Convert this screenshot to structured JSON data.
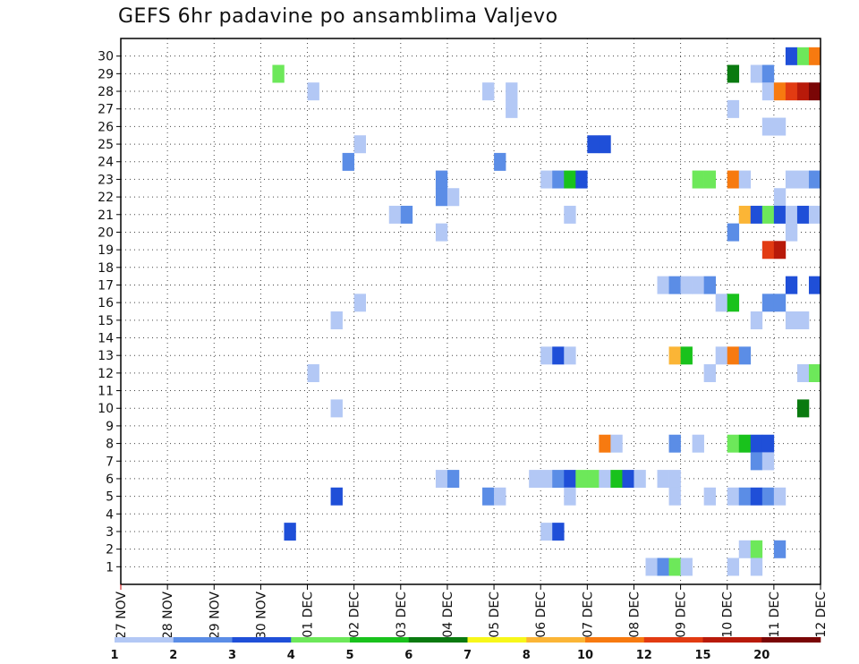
{
  "chart_data": {
    "type": "heatmap",
    "title": "GEFS 6hr padavine po ansamblima Valjevo",
    "xlabel": "",
    "ylabel": "",
    "x_ticks": [
      "27 NOV",
      "28 NOV",
      "29 NOV",
      "30 NOV",
      "01 DEC",
      "02 DEC",
      "03 DEC",
      "04 DEC",
      "05 DEC",
      "06 DEC",
      "07 DEC",
      "08 DEC",
      "09 DEC",
      "10 DEC",
      "11 DEC",
      "12 DEC"
    ],
    "y_ticks": [
      "1",
      "2",
      "3",
      "4",
      "5",
      "6",
      "7",
      "8",
      "9",
      "10",
      "11",
      "12",
      "13",
      "14",
      "15",
      "16",
      "17",
      "18",
      "19",
      "20",
      "21",
      "22",
      "23",
      "24",
      "25",
      "26",
      "27",
      "28",
      "29",
      "30"
    ],
    "grid": true,
    "x_steps_per_day": 4,
    "legend": {
      "position": "bottom",
      "levels": [
        "1",
        "2",
        "3",
        "4",
        "5",
        "6",
        "7",
        "8",
        "10",
        "12",
        "15",
        "20"
      ],
      "colors": [
        "#b3c8f5",
        "#5b8de6",
        "#1f4fd8",
        "#6de85a",
        "#19c21c",
        "#0a7a10",
        "#f7f71a",
        "#fbb536",
        "#f77a10",
        "#e23b12",
        "#b81a0a",
        "#7a0606"
      ]
    },
    "cells": [
      {
        "member": 30,
        "step": 57,
        "bin": 3
      },
      {
        "member": 30,
        "step": 58,
        "bin": 4
      },
      {
        "member": 30,
        "step": 59,
        "bin": 10
      },
      {
        "member": 29,
        "step": 13,
        "bin": 4
      },
      {
        "member": 29,
        "step": 52,
        "bin": 6
      },
      {
        "member": 29,
        "step": 54,
        "bin": 1
      },
      {
        "member": 29,
        "step": 55,
        "bin": 2
      },
      {
        "member": 28,
        "step": 16,
        "bin": 1
      },
      {
        "member": 28,
        "step": 31,
        "bin": 1
      },
      {
        "member": 28,
        "step": 33,
        "bin": 1
      },
      {
        "member": 28,
        "step": 55,
        "bin": 1
      },
      {
        "member": 28,
        "step": 56,
        "bin": 10
      },
      {
        "member": 28,
        "step": 57,
        "bin": 12
      },
      {
        "member": 28,
        "step": 58,
        "bin": 15
      },
      {
        "member": 28,
        "step": 59,
        "bin": 20
      },
      {
        "member": 27,
        "step": 33,
        "bin": 1
      },
      {
        "member": 27,
        "step": 52,
        "bin": 1
      },
      {
        "member": 26,
        "step": 55,
        "bin": 1
      },
      {
        "member": 26,
        "step": 56,
        "bin": 1
      },
      {
        "member": 25,
        "step": 20,
        "bin": 1
      },
      {
        "member": 25,
        "step": 40,
        "bin": 3
      },
      {
        "member": 25,
        "step": 41,
        "bin": 3
      },
      {
        "member": 24,
        "step": 19,
        "bin": 2
      },
      {
        "member": 24,
        "step": 32,
        "bin": 2
      },
      {
        "member": 23,
        "step": 27,
        "bin": 2
      },
      {
        "member": 23,
        "step": 36,
        "bin": 1
      },
      {
        "member": 23,
        "step": 37,
        "bin": 2
      },
      {
        "member": 23,
        "step": 38,
        "bin": 5
      },
      {
        "member": 23,
        "step": 39,
        "bin": 3
      },
      {
        "member": 23,
        "step": 49,
        "bin": 4
      },
      {
        "member": 23,
        "step": 50,
        "bin": 4
      },
      {
        "member": 23,
        "step": 52,
        "bin": 10
      },
      {
        "member": 23,
        "step": 53,
        "bin": 1
      },
      {
        "member": 23,
        "step": 57,
        "bin": 1
      },
      {
        "member": 23,
        "step": 58,
        "bin": 1
      },
      {
        "member": 23,
        "step": 59,
        "bin": 2
      },
      {
        "member": 22,
        "step": 27,
        "bin": 2
      },
      {
        "member": 22,
        "step": 28,
        "bin": 1
      },
      {
        "member": 22,
        "step": 56,
        "bin": 1
      },
      {
        "member": 21,
        "step": 23,
        "bin": 1
      },
      {
        "member": 21,
        "step": 24,
        "bin": 2
      },
      {
        "member": 21,
        "step": 38,
        "bin": 1
      },
      {
        "member": 21,
        "step": 53,
        "bin": 8
      },
      {
        "member": 21,
        "step": 54,
        "bin": 3
      },
      {
        "member": 21,
        "step": 55,
        "bin": 4
      },
      {
        "member": 21,
        "step": 56,
        "bin": 3
      },
      {
        "member": 21,
        "step": 57,
        "bin": 1
      },
      {
        "member": 21,
        "step": 58,
        "bin": 3
      },
      {
        "member": 21,
        "step": 59,
        "bin": 1
      },
      {
        "member": 20,
        "step": 27,
        "bin": 1
      },
      {
        "member": 20,
        "step": 52,
        "bin": 2
      },
      {
        "member": 20,
        "step": 57,
        "bin": 1
      },
      {
        "member": 19,
        "step": 55,
        "bin": 12
      },
      {
        "member": 19,
        "step": 56,
        "bin": 15
      },
      {
        "member": 17,
        "step": 46,
        "bin": 1
      },
      {
        "member": 17,
        "step": 47,
        "bin": 2
      },
      {
        "member": 17,
        "step": 48,
        "bin": 1
      },
      {
        "member": 17,
        "step": 49,
        "bin": 1
      },
      {
        "member": 17,
        "step": 50,
        "bin": 2
      },
      {
        "member": 17,
        "step": 57,
        "bin": 3
      },
      {
        "member": 17,
        "step": 59,
        "bin": 3
      },
      {
        "member": 16,
        "step": 20,
        "bin": 1
      },
      {
        "member": 16,
        "step": 51,
        "bin": 1
      },
      {
        "member": 16,
        "step": 52,
        "bin": 5
      },
      {
        "member": 16,
        "step": 55,
        "bin": 2
      },
      {
        "member": 16,
        "step": 56,
        "bin": 2
      },
      {
        "member": 15,
        "step": 18,
        "bin": 1
      },
      {
        "member": 15,
        "step": 54,
        "bin": 1
      },
      {
        "member": 15,
        "step": 57,
        "bin": 1
      },
      {
        "member": 15,
        "step": 58,
        "bin": 1
      },
      {
        "member": 13,
        "step": 36,
        "bin": 1
      },
      {
        "member": 13,
        "step": 37,
        "bin": 3
      },
      {
        "member": 13,
        "step": 38,
        "bin": 1
      },
      {
        "member": 13,
        "step": 47,
        "bin": 8
      },
      {
        "member": 13,
        "step": 48,
        "bin": 5
      },
      {
        "member": 13,
        "step": 51,
        "bin": 1
      },
      {
        "member": 13,
        "step": 52,
        "bin": 10
      },
      {
        "member": 13,
        "step": 53,
        "bin": 2
      },
      {
        "member": 12,
        "step": 16,
        "bin": 1
      },
      {
        "member": 12,
        "step": 50,
        "bin": 1
      },
      {
        "member": 12,
        "step": 58,
        "bin": 1
      },
      {
        "member": 12,
        "step": 59,
        "bin": 4
      },
      {
        "member": 10,
        "step": 18,
        "bin": 1
      },
      {
        "member": 10,
        "step": 58,
        "bin": 6
      },
      {
        "member": 8,
        "step": 41,
        "bin": 10
      },
      {
        "member": 8,
        "step": 42,
        "bin": 1
      },
      {
        "member": 8,
        "step": 47,
        "bin": 2
      },
      {
        "member": 8,
        "step": 49,
        "bin": 1
      },
      {
        "member": 8,
        "step": 52,
        "bin": 4
      },
      {
        "member": 8,
        "step": 53,
        "bin": 5
      },
      {
        "member": 8,
        "step": 54,
        "bin": 3
      },
      {
        "member": 8,
        "step": 55,
        "bin": 3
      },
      {
        "member": 7,
        "step": 54,
        "bin": 2
      },
      {
        "member": 7,
        "step": 55,
        "bin": 1
      },
      {
        "member": 6,
        "step": 27,
        "bin": 1
      },
      {
        "member": 6,
        "step": 28,
        "bin": 2
      },
      {
        "member": 6,
        "step": 35,
        "bin": 1
      },
      {
        "member": 6,
        "step": 36,
        "bin": 1
      },
      {
        "member": 6,
        "step": 37,
        "bin": 2
      },
      {
        "member": 6,
        "step": 38,
        "bin": 3
      },
      {
        "member": 6,
        "step": 39,
        "bin": 4
      },
      {
        "member": 6,
        "step": 40,
        "bin": 4
      },
      {
        "member": 6,
        "step": 41,
        "bin": 1
      },
      {
        "member": 6,
        "step": 42,
        "bin": 5
      },
      {
        "member": 6,
        "step": 43,
        "bin": 3
      },
      {
        "member": 6,
        "step": 44,
        "bin": 1
      },
      {
        "member": 6,
        "step": 46,
        "bin": 1
      },
      {
        "member": 6,
        "step": 47,
        "bin": 1
      },
      {
        "member": 5,
        "step": 18,
        "bin": 3
      },
      {
        "member": 5,
        "step": 31,
        "bin": 2
      },
      {
        "member": 5,
        "step": 32,
        "bin": 1
      },
      {
        "member": 5,
        "step": 38,
        "bin": 1
      },
      {
        "member": 5,
        "step": 47,
        "bin": 1
      },
      {
        "member": 5,
        "step": 50,
        "bin": 1
      },
      {
        "member": 5,
        "step": 52,
        "bin": 1
      },
      {
        "member": 5,
        "step": 53,
        "bin": 2
      },
      {
        "member": 5,
        "step": 54,
        "bin": 3
      },
      {
        "member": 5,
        "step": 55,
        "bin": 2
      },
      {
        "member": 5,
        "step": 56,
        "bin": 1
      },
      {
        "member": 3,
        "step": 14,
        "bin": 3
      },
      {
        "member": 3,
        "step": 36,
        "bin": 1
      },
      {
        "member": 3,
        "step": 37,
        "bin": 3
      },
      {
        "member": 2,
        "step": 53,
        "bin": 1
      },
      {
        "member": 2,
        "step": 54,
        "bin": 4
      },
      {
        "member": 2,
        "step": 56,
        "bin": 2
      },
      {
        "member": 1,
        "step": 45,
        "bin": 1
      },
      {
        "member": 1,
        "step": 46,
        "bin": 2
      },
      {
        "member": 1,
        "step": 47,
        "bin": 4
      },
      {
        "member": 1,
        "step": 48,
        "bin": 1
      },
      {
        "member": 1,
        "step": 52,
        "bin": 1
      },
      {
        "member": 1,
        "step": 54,
        "bin": 1
      }
    ]
  }
}
